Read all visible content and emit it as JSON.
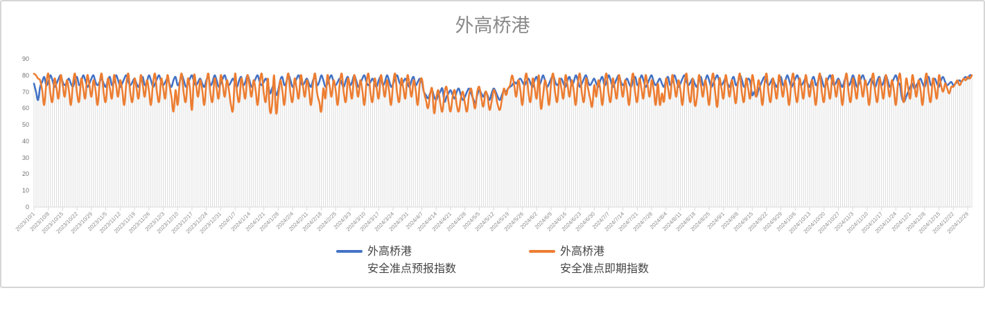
{
  "colors": {
    "forecast_blue": "#4472C4",
    "spot_orange": "#ED7D31",
    "drop_line": "#dcdcdc",
    "axis_line": "#d9d9d9",
    "tick_mark": "#c9c9c9",
    "title_gray": "#8a8a8a",
    "border_gray": "#d6d6d6"
  },
  "chart_data": {
    "type": "line",
    "title": "外高桥港",
    "legend_position": "bottom",
    "grid": "vertical-drop-lines-per-point",
    "y_axis": {
      "min": 0,
      "max": 90,
      "step": 10,
      "tick_labels": [
        "0",
        "10",
        "20",
        "30",
        "40",
        "50",
        "60",
        "70",
        "80",
        "90"
      ]
    },
    "x_axis": {
      "tick_interval_days": 7,
      "points_per_series": 458,
      "tick_labels": [
        "2023/10/1",
        "2023/10/8",
        "2023/10/15",
        "2023/10/22",
        "2023/10/29",
        "2023/11/5",
        "2023/11/12",
        "2023/11/19",
        "2023/11/26",
        "2023/12/3",
        "2023/12/10",
        "2023/12/17",
        "2023/12/24",
        "2023/12/31",
        "2024/1/7",
        "2024/1/14",
        "2024/1/21",
        "2024/1/28",
        "2024/2/4",
        "2024/2/11",
        "2024/2/18",
        "2024/2/25",
        "2024/3/3",
        "2024/3/10",
        "2024/3/17",
        "2024/3/24",
        "2024/3/31",
        "2024/4/7",
        "2024/4/14",
        "2024/4/21",
        "2024/4/28",
        "2024/5/5",
        "2024/5/12",
        "2024/5/19",
        "2024/5/26",
        "2024/6/2",
        "2024/6/9",
        "2024/6/16",
        "2024/6/23",
        "2024/6/30",
        "2024/7/7",
        "2024/7/14",
        "2024/7/21",
        "2024/7/28",
        "2024/8/4",
        "2024/8/11",
        "2024/8/18",
        "2024/8/25",
        "2024/9/1",
        "2024/9/8",
        "2024/9/15",
        "2024/9/22",
        "2024/9/29",
        "2024/10/6",
        "2024/10/13",
        "2024/10/20",
        "2024/10/27",
        "2024/11/3",
        "2024/11/10",
        "2024/11/17",
        "2024/11/24",
        "2024/12/1",
        "2024/12/8",
        "2024/12/15",
        "2024/12/22",
        "2024/12/29"
      ]
    },
    "series": [
      {
        "name_line1": "外高桥港",
        "name_line2": "安全准点预报指数",
        "color": "#4472C4",
        "values": [
          75,
          70,
          65,
          73,
          76,
          79,
          74,
          76,
          80,
          77,
          73,
          75,
          78,
          80,
          76,
          74,
          76,
          78,
          75,
          73,
          77,
          79,
          74,
          76,
          80,
          77,
          73,
          75,
          78,
          80,
          76,
          74,
          76,
          78,
          75,
          73,
          77,
          79,
          74,
          76,
          80,
          77,
          73,
          75,
          78,
          80,
          76,
          74,
          76,
          78,
          75,
          73,
          77,
          79,
          74,
          76,
          80,
          77,
          73,
          75,
          78,
          80,
          76,
          74,
          76,
          78,
          75,
          73,
          77,
          79,
          74,
          76,
          80,
          77,
          73,
          75,
          78,
          80,
          76,
          74,
          76,
          78,
          75,
          73,
          77,
          79,
          74,
          76,
          80,
          77,
          73,
          75,
          78,
          80,
          76,
          74,
          76,
          78,
          75,
          73,
          77,
          79,
          74,
          76,
          80,
          77,
          73,
          75,
          78,
          80,
          76,
          74,
          76,
          78,
          75,
          69,
          72,
          74,
          68,
          71,
          77,
          79,
          74,
          76,
          80,
          77,
          73,
          75,
          78,
          80,
          76,
          74,
          76,
          78,
          75,
          73,
          77,
          79,
          74,
          76,
          80,
          77,
          73,
          75,
          78,
          80,
          76,
          74,
          76,
          78,
          75,
          73,
          77,
          79,
          74,
          76,
          80,
          77,
          73,
          75,
          78,
          80,
          76,
          74,
          76,
          78,
          75,
          73,
          77,
          79,
          74,
          76,
          80,
          77,
          73,
          75,
          78,
          80,
          76,
          74,
          76,
          78,
          75,
          73,
          77,
          79,
          74,
          76,
          78,
          76,
          70,
          68,
          66,
          69,
          71,
          67,
          65,
          68,
          70,
          72,
          64,
          67,
          69,
          71,
          68,
          66,
          70,
          72,
          68,
          65,
          67,
          70,
          72,
          69,
          66,
          63,
          68,
          71,
          69,
          67,
          70,
          68,
          65,
          69,
          72,
          70,
          67,
          65,
          68,
          71,
          70,
          72,
          73,
          74,
          76,
          75,
          77,
          78,
          76,
          74,
          76,
          78,
          75,
          73,
          77,
          79,
          74,
          76,
          80,
          77,
          73,
          75,
          78,
          80,
          76,
          74,
          76,
          78,
          75,
          73,
          77,
          79,
          74,
          76,
          80,
          77,
          73,
          75,
          78,
          80,
          76,
          74,
          76,
          78,
          75,
          73,
          77,
          79,
          74,
          76,
          80,
          77,
          73,
          75,
          78,
          80,
          76,
          74,
          76,
          78,
          75,
          73,
          77,
          79,
          74,
          76,
          80,
          77,
          73,
          75,
          78,
          80,
          76,
          74,
          76,
          78,
          75,
          73,
          77,
          79,
          74,
          76,
          80,
          77,
          73,
          75,
          78,
          80,
          76,
          74,
          76,
          78,
          75,
          73,
          77,
          79,
          74,
          76,
          80,
          77,
          73,
          75,
          78,
          80,
          76,
          74,
          76,
          78,
          75,
          73,
          77,
          79,
          74,
          76,
          80,
          77,
          73,
          75,
          78,
          76,
          68,
          70,
          67,
          71,
          74,
          77,
          79,
          76,
          74,
          76,
          78,
          75,
          73,
          77,
          79,
          74,
          76,
          80,
          77,
          73,
          75,
          78,
          80,
          76,
          74,
          76,
          78,
          75,
          73,
          77,
          79,
          74,
          76,
          80,
          77,
          73,
          75,
          78,
          80,
          76,
          74,
          76,
          78,
          75,
          73,
          77,
          79,
          74,
          76,
          80,
          77,
          73,
          75,
          78,
          80,
          76,
          74,
          76,
          78,
          75,
          73,
          77,
          79,
          74,
          76,
          80,
          77,
          73,
          75,
          78,
          80,
          76,
          74,
          66,
          64,
          67,
          70,
          73,
          75,
          72,
          74,
          76,
          78,
          75,
          73,
          77,
          79,
          74,
          76,
          78,
          75,
          73,
          77,
          79,
          76,
          74,
          75,
          76,
          74,
          75,
          76,
          77,
          76,
          78,
          79,
          78,
          80,
          80
        ]
      },
      {
        "name_line1": "外高桥港",
        "name_line2": "安全准点即期指数",
        "color": "#ED7D31",
        "values": [
          81,
          80,
          78,
          77,
          71,
          62,
          75,
          81,
          69,
          64,
          78,
          72,
          66,
          80,
          74,
          67,
          77,
          71,
          62,
          75,
          81,
          69,
          64,
          78,
          72,
          66,
          80,
          74,
          67,
          77,
          71,
          62,
          75,
          81,
          69,
          64,
          78,
          72,
          66,
          80,
          74,
          67,
          77,
          71,
          62,
          75,
          81,
          69,
          64,
          78,
          72,
          66,
          80,
          74,
          67,
          77,
          71,
          62,
          75,
          81,
          69,
          64,
          78,
          72,
          66,
          80,
          74,
          67,
          58,
          71,
          62,
          75,
          81,
          69,
          64,
          78,
          72,
          59,
          80,
          74,
          67,
          77,
          71,
          62,
          75,
          81,
          69,
          64,
          78,
          72,
          66,
          80,
          74,
          67,
          77,
          71,
          62,
          59,
          81,
          69,
          64,
          78,
          72,
          66,
          80,
          74,
          67,
          77,
          71,
          62,
          75,
          81,
          69,
          64,
          78,
          58,
          62,
          80,
          57,
          67,
          77,
          71,
          62,
          75,
          81,
          69,
          64,
          78,
          72,
          66,
          80,
          74,
          67,
          77,
          71,
          62,
          75,
          81,
          69,
          64,
          58,
          72,
          66,
          80,
          74,
          67,
          77,
          71,
          62,
          75,
          81,
          69,
          64,
          78,
          72,
          66,
          80,
          74,
          67,
          77,
          71,
          62,
          75,
          81,
          69,
          64,
          78,
          72,
          66,
          80,
          74,
          67,
          77,
          71,
          62,
          75,
          81,
          69,
          64,
          78,
          72,
          66,
          80,
          74,
          67,
          77,
          71,
          62,
          75,
          78,
          70,
          65,
          60,
          68,
          72,
          57,
          66,
          71,
          63,
          58,
          69,
          73,
          64,
          58,
          67,
          71,
          62,
          58,
          66,
          70,
          63,
          58,
          68,
          72,
          65,
          60,
          70,
          73,
          66,
          61,
          70,
          67,
          59,
          64,
          71,
          68,
          62,
          59,
          65,
          72,
          68,
          72,
          74,
          80,
          74,
          67,
          77,
          71,
          62,
          75,
          81,
          69,
          64,
          78,
          72,
          66,
          80,
          60,
          67,
          77,
          71,
          62,
          75,
          81,
          69,
          64,
          78,
          72,
          66,
          80,
          74,
          67,
          77,
          71,
          62,
          75,
          81,
          69,
          64,
          78,
          72,
          66,
          61,
          74,
          67,
          77,
          71,
          62,
          75,
          81,
          69,
          64,
          78,
          72,
          66,
          80,
          74,
          67,
          77,
          71,
          62,
          75,
          81,
          69,
          64,
          78,
          72,
          66,
          80,
          74,
          67,
          77,
          71,
          62,
          75,
          62,
          69,
          64,
          78,
          72,
          66,
          80,
          74,
          67,
          77,
          71,
          62,
          75,
          81,
          69,
          64,
          78,
          62,
          66,
          80,
          74,
          67,
          77,
          71,
          62,
          75,
          81,
          69,
          61,
          78,
          72,
          66,
          80,
          74,
          67,
          77,
          71,
          63,
          75,
          81,
          69,
          64,
          78,
          72,
          66,
          80,
          74,
          67,
          77,
          71,
          62,
          75,
          81,
          69,
          64,
          78,
          72,
          66,
          80,
          74,
          67,
          77,
          71,
          62,
          75,
          81,
          69,
          64,
          78,
          72,
          66,
          80,
          74,
          67,
          77,
          71,
          62,
          75,
          81,
          69,
          64,
          78,
          72,
          66,
          80,
          74,
          67,
          77,
          71,
          62,
          75,
          81,
          69,
          64,
          78,
          72,
          66,
          80,
          74,
          67,
          77,
          71,
          62,
          75,
          81,
          69,
          64,
          78,
          72,
          66,
          80,
          74,
          67,
          77,
          71,
          62,
          75,
          81,
          69,
          64,
          78,
          72,
          66,
          80,
          74,
          67,
          77,
          71,
          62,
          75,
          81,
          69,
          64,
          78,
          72,
          66,
          80,
          74,
          70,
          75,
          72,
          69,
          73,
          73,
          75,
          77,
          74,
          76,
          78,
          77,
          79,
          78,
          80
        ]
      }
    ]
  }
}
